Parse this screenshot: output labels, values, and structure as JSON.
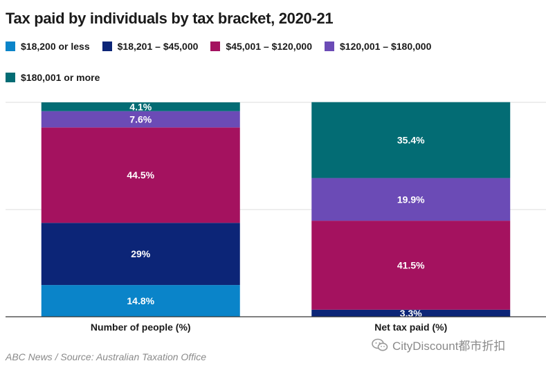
{
  "title": "Tax paid by individuals by tax bracket, 2020-21",
  "source": "ABC News / Source: Australian Taxation Office",
  "watermark": "CityDiscount都市折扣",
  "colors": {
    "$18,200 or less": "#0a84c9",
    "$18,201 – $45,000": "#0c2577",
    "$45,001 – $120,000": "#a4125f",
    "$120,001 – $180,000": "#6b4bb6",
    "$180,001 or more": "#036c74"
  },
  "chart_data": {
    "type": "bar",
    "stacked": true,
    "percent_stacked": true,
    "categories": [
      "Number of people (%)",
      "Net tax paid (%)"
    ],
    "series": [
      {
        "name": "$18,200 or less",
        "values": [
          14.8,
          0
        ]
      },
      {
        "name": "$18,201 – $45,000",
        "values": [
          29,
          3.3
        ]
      },
      {
        "name": "$45,001 – $120,000",
        "values": [
          44.5,
          41.5
        ]
      },
      {
        "name": "$120,001 – $180,000",
        "values": [
          7.6,
          19.9
        ]
      },
      {
        "name": "$180,001 or more",
        "values": [
          4.1,
          35.4
        ]
      }
    ],
    "data_labels": [
      [
        "14.8%",
        "29%",
        "44.5%",
        "7.6%",
        "4.1%"
      ],
      [
        "",
        "3.3%",
        "41.5%",
        "19.9%",
        "35.4%"
      ]
    ],
    "ylim": [
      0,
      100
    ],
    "grid": true,
    "legend_position": "top-left"
  }
}
